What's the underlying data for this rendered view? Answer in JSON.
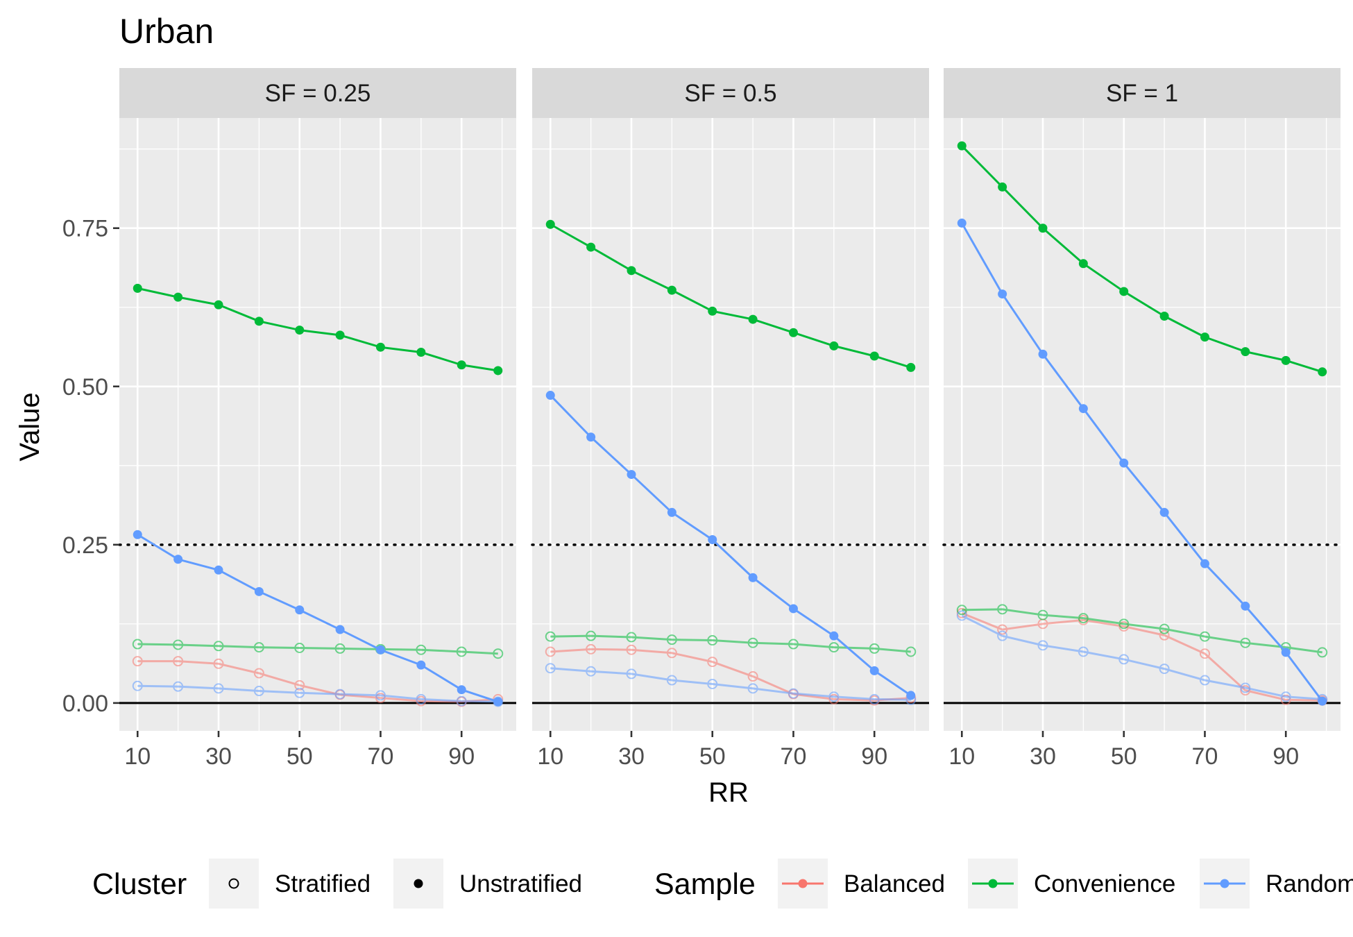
{
  "chart_data": {
    "type": "line",
    "title": "Urban",
    "xlabel": "RR",
    "ylabel": "Value",
    "x": [
      10,
      20,
      30,
      40,
      50,
      60,
      70,
      80,
      90,
      99
    ],
    "x_ticks": [
      10,
      30,
      50,
      70,
      90
    ],
    "x_tick_labels": [
      "10",
      "30",
      "50",
      "70",
      "90"
    ],
    "xlim": [
      5.5,
      103.5
    ],
    "y_ticks": [
      0,
      0.25,
      0.5,
      0.75
    ],
    "y_tick_labels": [
      "0.00",
      "0.25",
      "0.50",
      "0.75"
    ],
    "ylim": [
      -0.044,
      0.924
    ],
    "reference_lines": [
      {
        "y": 0,
        "style": "solid"
      },
      {
        "y": 0.25,
        "style": "dotted"
      }
    ],
    "grid": true,
    "legend_position": "bottom",
    "legends": [
      {
        "title": "Cluster",
        "entries": [
          {
            "label": "Stratified",
            "shape": "open-circle"
          },
          {
            "label": "Unstratified",
            "shape": "filled-circle"
          }
        ]
      },
      {
        "title": "Sample",
        "entries": [
          {
            "label": "Balanced",
            "color": "#F8766D"
          },
          {
            "label": "Convenience",
            "color": "#00BA38"
          },
          {
            "label": "Random",
            "color": "#619CFF"
          }
        ]
      }
    ],
    "colors": {
      "Balanced": "#F8766D",
      "Convenience": "#00BA38",
      "Random": "#619CFF"
    },
    "panels": [
      {
        "label": "SF = 0.25",
        "series": [
          {
            "sample": "Balanced",
            "cluster": "Stratified",
            "values": [
              0.066,
              0.066,
              0.062,
              0.047,
              0.028,
              0.013,
              0.008,
              0.003,
              0.002,
              0.006
            ]
          },
          {
            "sample": "Convenience",
            "cluster": "Stratified",
            "values": [
              0.093,
              0.092,
              0.09,
              0.088,
              0.087,
              0.086,
              0.085,
              0.084,
              0.081,
              0.078
            ]
          },
          {
            "sample": "Random",
            "cluster": "Stratified",
            "values": [
              0.027,
              0.026,
              0.023,
              0.019,
              0.016,
              0.014,
              0.012,
              0.006,
              0.003,
              0.002
            ]
          },
          {
            "sample": "Random",
            "cluster": "Unstratified",
            "values": [
              0.266,
              0.227,
              0.21,
              0.176,
              0.147,
              0.116,
              0.084,
              0.06,
              0.021,
              0.002
            ]
          },
          {
            "sample": "Convenience",
            "cluster": "Unstratified",
            "values": [
              0.655,
              0.641,
              0.629,
              0.603,
              0.589,
              0.581,
              0.562,
              0.554,
              0.534,
              0.525
            ]
          }
        ]
      },
      {
        "label": "SF = 0.5",
        "series": [
          {
            "sample": "Balanced",
            "cluster": "Stratified",
            "values": [
              0.081,
              0.085,
              0.084,
              0.079,
              0.065,
              0.042,
              0.014,
              0.006,
              0.004,
              0.008
            ]
          },
          {
            "sample": "Convenience",
            "cluster": "Stratified",
            "values": [
              0.105,
              0.106,
              0.104,
              0.1,
              0.099,
              0.095,
              0.093,
              0.088,
              0.086,
              0.081
            ]
          },
          {
            "sample": "Random",
            "cluster": "Stratified",
            "values": [
              0.055,
              0.05,
              0.046,
              0.036,
              0.03,
              0.023,
              0.015,
              0.01,
              0.006,
              0.005
            ]
          },
          {
            "sample": "Random",
            "cluster": "Unstratified",
            "values": [
              0.486,
              0.42,
              0.361,
              0.301,
              0.258,
              0.198,
              0.149,
              0.106,
              0.051,
              0.012
            ]
          },
          {
            "sample": "Convenience",
            "cluster": "Unstratified",
            "values": [
              0.756,
              0.72,
              0.683,
              0.652,
              0.619,
              0.606,
              0.585,
              0.564,
              0.548,
              0.53
            ]
          }
        ]
      },
      {
        "label": "SF = 1",
        "series": [
          {
            "sample": "Balanced",
            "cluster": "Stratified",
            "values": [
              0.142,
              0.116,
              0.125,
              0.131,
              0.121,
              0.107,
              0.078,
              0.02,
              0.005,
              0.004
            ]
          },
          {
            "sample": "Convenience",
            "cluster": "Stratified",
            "values": [
              0.147,
              0.148,
              0.139,
              0.134,
              0.125,
              0.117,
              0.105,
              0.095,
              0.088,
              0.08
            ]
          },
          {
            "sample": "Random",
            "cluster": "Stratified",
            "values": [
              0.138,
              0.106,
              0.091,
              0.081,
              0.069,
              0.054,
              0.036,
              0.024,
              0.01,
              0.006
            ]
          },
          {
            "sample": "Random",
            "cluster": "Unstratified",
            "values": [
              0.758,
              0.646,
              0.551,
              0.465,
              0.379,
              0.301,
              0.22,
              0.153,
              0.08,
              0.003
            ]
          },
          {
            "sample": "Convenience",
            "cluster": "Unstratified",
            "values": [
              0.88,
              0.815,
              0.75,
              0.694,
              0.65,
              0.611,
              0.578,
              0.555,
              0.541,
              0.523
            ]
          }
        ]
      }
    ]
  }
}
